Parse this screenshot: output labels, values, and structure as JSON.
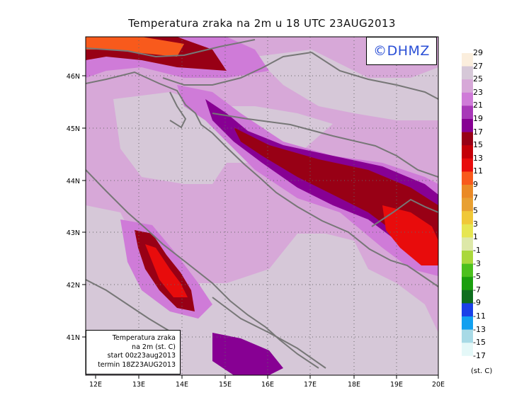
{
  "title": "Temperatura zraka na 2m u 18 UTC 23AUG2013",
  "logo": "©DHMZ",
  "legend_box": {
    "line1": "Temperatura zraka",
    "line2": "na 2m (st. C)",
    "line3": "start 00z23aug2013",
    "line4": "termin 18Z23AUG2013"
  },
  "units": "(st. C)",
  "lon_labels": [
    "12E",
    "13E",
    "14E",
    "15E",
    "16E",
    "17E",
    "18E",
    "19E",
    "20E"
  ],
  "lat_labels": [
    "41N",
    "42N",
    "43N",
    "44N",
    "45N",
    "46N"
  ],
  "colorbar": {
    "labels": [
      "29",
      "27",
      "25",
      "23",
      "21",
      "19",
      "17",
      "15",
      "13",
      "11",
      "9",
      "7",
      "5",
      "3",
      "1",
      "-1",
      "-3",
      "-5",
      "-7",
      "-9",
      "-11",
      "-13",
      "-15",
      "-17"
    ],
    "colors": [
      "#fbeedd",
      "#d6c8d8",
      "#d7a8d8",
      "#cf7bd8",
      "#a838b8",
      "#870093",
      "#980015",
      "#c40008",
      "#e80c0c",
      "#f85a1c",
      "#ea8a26",
      "#e8a032",
      "#f0c838",
      "#e6e652",
      "#dde8a8",
      "#aad83c",
      "#4cc01e",
      "#1a9e0e",
      "#0e6e1e",
      "#1a40e8",
      "#12a0f0",
      "#a8dae6",
      "#e4f8f8",
      "#ffffff"
    ]
  }
}
